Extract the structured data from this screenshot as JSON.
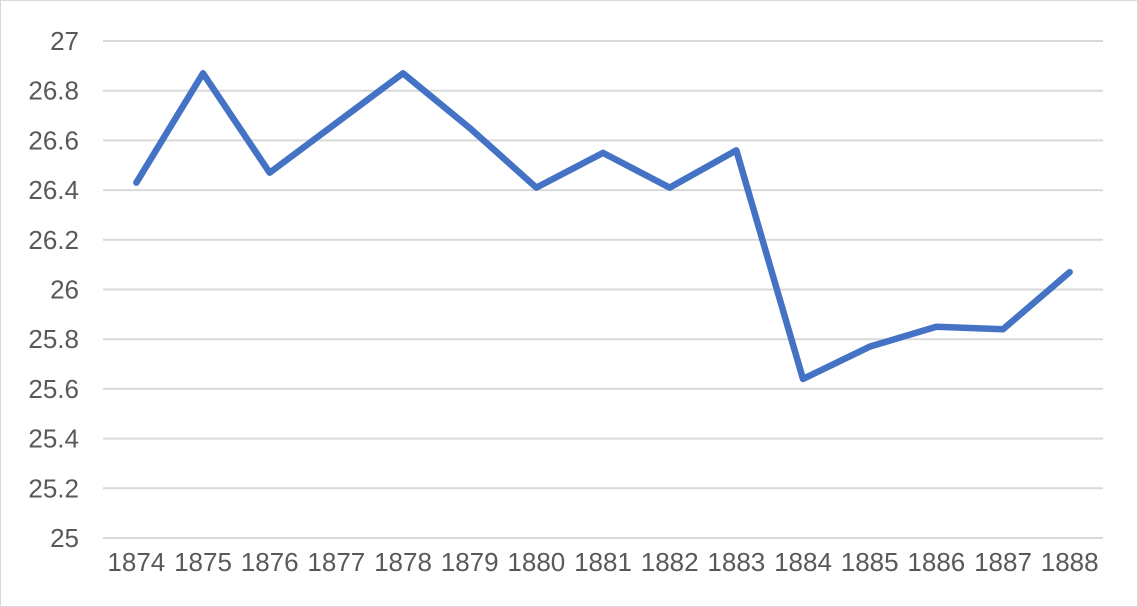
{
  "chart_data": {
    "type": "line",
    "title": "",
    "xlabel": "",
    "ylabel": "",
    "categories": [
      "1874",
      "1875",
      "1876",
      "1877",
      "1878",
      "1879",
      "1880",
      "1881",
      "1882",
      "1883",
      "1884",
      "1885",
      "1886",
      "1887",
      "1888"
    ],
    "series": [
      {
        "values": [
          26.43,
          26.87,
          26.47,
          26.67,
          26.87,
          26.65,
          26.41,
          26.55,
          26.41,
          26.56,
          25.64,
          25.77,
          25.85,
          25.84,
          26.07
        ]
      }
    ],
    "ylim": [
      25,
      27
    ],
    "yticks": [
      "25",
      "25.2",
      "25.4",
      "25.6",
      "25.8",
      "26",
      "26.2",
      "26.4",
      "26.6",
      "26.8",
      "27"
    ],
    "grid": true,
    "legend": "none",
    "colors": {
      "line": "#4472c4",
      "grid": "#d9d9d9",
      "text": "#595959"
    }
  }
}
